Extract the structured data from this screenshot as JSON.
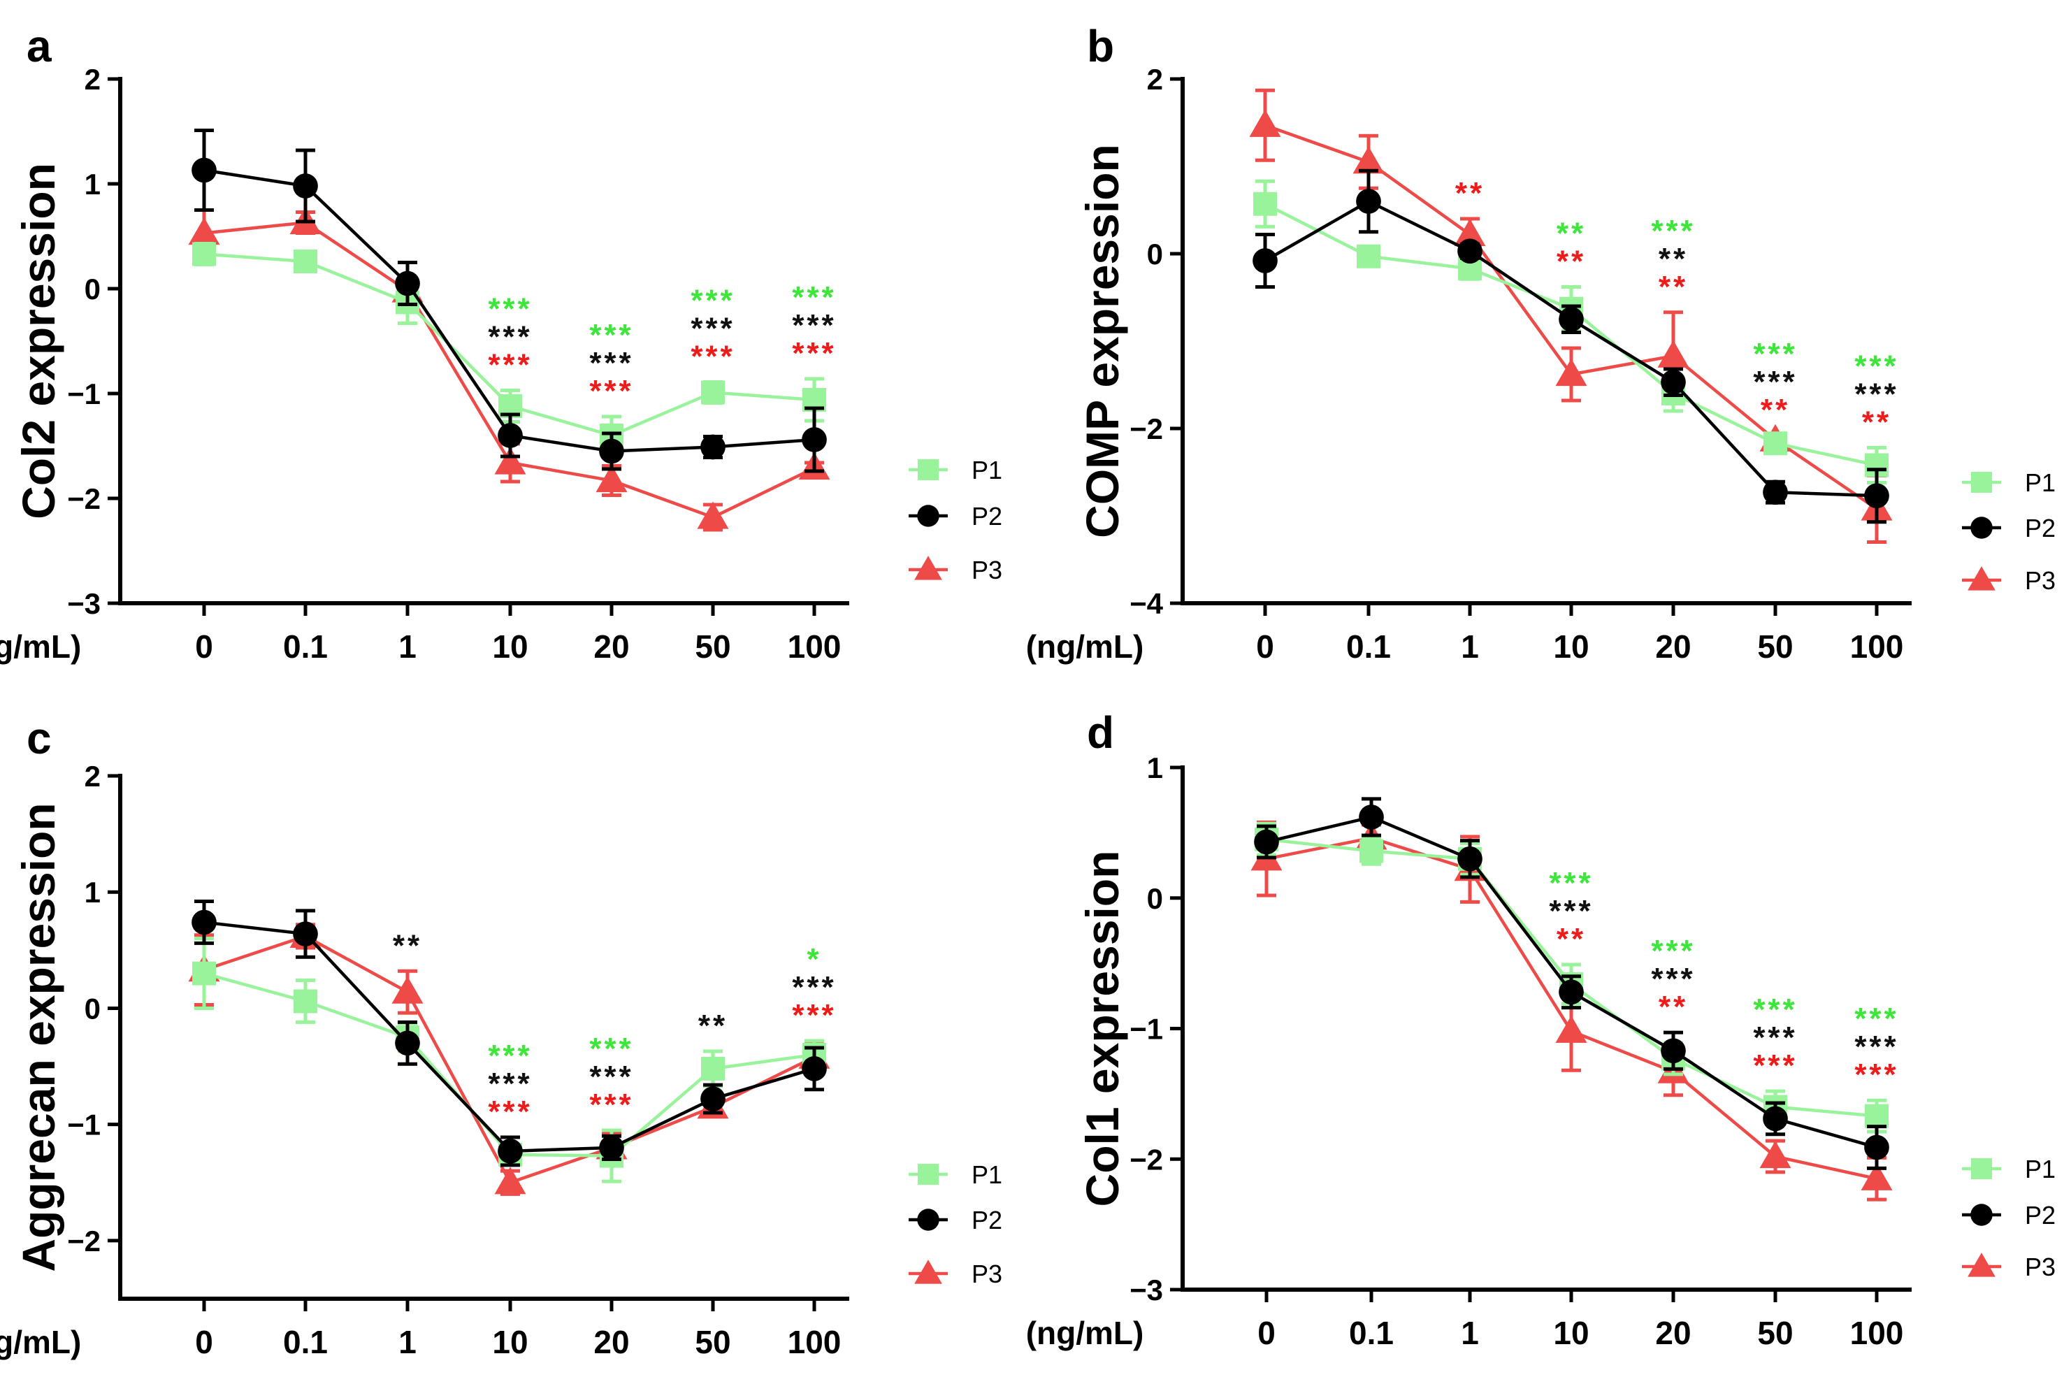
{
  "colors": {
    "P1": "#98f39a",
    "P2": "#000000",
    "P3": "#ee4a48",
    "sig_P1": "#3ee53a",
    "sig_P2": "#111111",
    "sig_P3": "#ee1b1b"
  },
  "chart_data": [
    {
      "panel": "a",
      "type": "line",
      "ylabel": "Col2 expression",
      "xunit": "(ng/mL)",
      "categories": [
        "0",
        "0.1",
        "1",
        "10",
        "20",
        "50",
        "100"
      ],
      "ylim": [
        -3,
        2
      ],
      "yticks": [
        -3,
        -2,
        -1,
        0,
        1,
        2
      ],
      "ytick_labels": [
        "−3",
        "−2",
        "−1",
        "0",
        "1",
        "2"
      ],
      "legend": [
        "P1",
        "P2",
        "P3"
      ],
      "series": [
        {
          "name": "P1",
          "values": [
            0.33,
            0.26,
            -0.13,
            -1.12,
            -1.4,
            -0.99,
            -1.06
          ],
          "errors": [
            0.1,
            0.04,
            0.2,
            0.15,
            0.18,
            0.1,
            0.2
          ]
        },
        {
          "name": "P2",
          "values": [
            1.13,
            0.98,
            0.05,
            -1.4,
            -1.55,
            -1.51,
            -1.44
          ],
          "errors": [
            0.38,
            0.34,
            0.2,
            0.2,
            0.17,
            0.1,
            0.3
          ]
        },
        {
          "name": "P3",
          "values": [
            0.53,
            0.63,
            -0.02,
            -1.66,
            -1.83,
            -2.18,
            -1.71
          ],
          "errors": [
            0.22,
            0.1,
            0.1,
            0.18,
            0.14,
            0.12,
            0.05
          ]
        }
      ],
      "significance": [
        {
          "category": "10",
          "labels": [
            [
              "P1",
              "***"
            ],
            [
              "P2",
              "***"
            ],
            [
              "P3",
              "***"
            ]
          ]
        },
        {
          "category": "20",
          "labels": [
            [
              "P1",
              "***"
            ],
            [
              "P2",
              "***"
            ],
            [
              "P3",
              "***"
            ]
          ]
        },
        {
          "category": "50",
          "labels": [
            [
              "P1",
              "***"
            ],
            [
              "P2",
              "***"
            ],
            [
              "P3",
              "***"
            ]
          ]
        },
        {
          "category": "100",
          "labels": [
            [
              "P1",
              "***"
            ],
            [
              "P2",
              "***"
            ],
            [
              "P3",
              "***"
            ]
          ]
        }
      ]
    },
    {
      "panel": "b",
      "type": "line",
      "ylabel": "COMP expression",
      "xunit": "(ng/mL)",
      "categories": [
        "0",
        "0.1",
        "1",
        "10",
        "20",
        "50",
        "100"
      ],
      "ylim": [
        -4,
        2
      ],
      "yticks": [
        -4,
        -2,
        0,
        2
      ],
      "ytick_labels": [
        "−4",
        "−2",
        "0",
        "2"
      ],
      "legend": [
        "P1",
        "P2",
        "P3"
      ],
      "series": [
        {
          "name": "P1",
          "values": [
            0.57,
            -0.03,
            -0.17,
            -0.63,
            -1.6,
            -2.17,
            -2.42
          ],
          "errors": [
            0.26,
            0.06,
            0.12,
            0.25,
            0.2,
            0.08,
            0.2
          ]
        },
        {
          "name": "P2",
          "values": [
            -0.08,
            0.6,
            0.03,
            -0.75,
            -1.47,
            -2.73,
            -2.77
          ],
          "errors": [
            0.3,
            0.35,
            0.08,
            0.15,
            0.15,
            0.12,
            0.3
          ]
        },
        {
          "name": "P3",
          "values": [
            1.47,
            1.05,
            0.22,
            -1.38,
            -1.17,
            -2.13,
            -2.92
          ],
          "errors": [
            0.4,
            0.3,
            0.18,
            0.3,
            0.5,
            0.05,
            0.38
          ]
        }
      ],
      "significance": [
        {
          "category": "1",
          "labels": [
            [
              "P3",
              "**"
            ]
          ]
        },
        {
          "category": "10",
          "labels": [
            [
              "P1",
              "**"
            ],
            [
              "P3",
              "**"
            ]
          ]
        },
        {
          "category": "20",
          "labels": [
            [
              "P1",
              "***"
            ],
            [
              "P2",
              "**"
            ],
            [
              "P3",
              "**"
            ]
          ]
        },
        {
          "category": "50",
          "labels": [
            [
              "P1",
              "***"
            ],
            [
              "P2",
              "***"
            ],
            [
              "P3",
              "**"
            ]
          ]
        },
        {
          "category": "100",
          "labels": [
            [
              "P1",
              "***"
            ],
            [
              "P2",
              "***"
            ],
            [
              "P3",
              "**"
            ]
          ]
        }
      ]
    },
    {
      "panel": "c",
      "type": "line",
      "ylabel": "Aggrecan expression",
      "xunit": "(ng/mL)",
      "categories": [
        "0",
        "0.1",
        "1",
        "10",
        "20",
        "50",
        "100"
      ],
      "ylim": [
        -2.5,
        2
      ],
      "yticks": [
        -2,
        -1,
        0,
        1,
        2
      ],
      "ytick_labels": [
        "−2",
        "−1",
        "0",
        "1",
        "2"
      ],
      "legend": [
        "P1",
        "P2",
        "P3"
      ],
      "series": [
        {
          "name": "P1",
          "values": [
            0.3,
            0.06,
            -0.25,
            -1.26,
            -1.27,
            -0.52,
            -0.4
          ],
          "errors": [
            0.3,
            0.18,
            0.12,
            0.08,
            0.22,
            0.15,
            0.12
          ]
        },
        {
          "name": "P2",
          "values": [
            0.74,
            0.64,
            -0.3,
            -1.23,
            -1.2,
            -0.78,
            -0.52
          ],
          "errors": [
            0.18,
            0.2,
            0.18,
            0.12,
            0.1,
            0.12,
            0.18
          ]
        },
        {
          "name": "P3",
          "values": [
            0.33,
            0.62,
            0.14,
            -1.5,
            -1.2,
            -0.85,
            -0.42
          ],
          "errors": [
            0.3,
            0.1,
            0.18,
            0.1,
            0.12,
            0.08,
            0.12
          ]
        }
      ],
      "significance": [
        {
          "category": "1",
          "labels": [
            [
              "P2",
              "**"
            ]
          ]
        },
        {
          "category": "10",
          "labels": [
            [
              "P1",
              "***"
            ],
            [
              "P2",
              "***"
            ],
            [
              "P3",
              "***"
            ]
          ]
        },
        {
          "category": "20",
          "labels": [
            [
              "P1",
              "***"
            ],
            [
              "P2",
              "***"
            ],
            [
              "P3",
              "***"
            ]
          ]
        },
        {
          "category": "50",
          "labels": [
            [
              "P2",
              "**"
            ]
          ]
        },
        {
          "category": "100",
          "labels": [
            [
              "P1",
              "*"
            ],
            [
              "P2",
              "***"
            ],
            [
              "P3",
              "***"
            ]
          ]
        }
      ]
    },
    {
      "panel": "d",
      "type": "line",
      "ylabel": "Col1 expression",
      "xunit": "(ng/mL)",
      "categories": [
        "0",
        "0.1",
        "1",
        "10",
        "20",
        "50",
        "100"
      ],
      "ylim": [
        -3,
        1
      ],
      "yticks": [
        -3,
        -2,
        -1,
        0,
        1
      ],
      "ytick_labels": [
        "−3",
        "−2",
        "−1",
        "0",
        "1"
      ],
      "legend": [
        "P1",
        "P2",
        "P3"
      ],
      "series": [
        {
          "name": "P1",
          "values": [
            0.45,
            0.36,
            0.3,
            -0.66,
            -1.23,
            -1.6,
            -1.67
          ],
          "errors": [
            0.12,
            0.1,
            0.12,
            0.15,
            0.12,
            0.12,
            0.12
          ]
        },
        {
          "name": "P2",
          "values": [
            0.43,
            0.62,
            0.3,
            -0.72,
            -1.17,
            -1.69,
            -1.91
          ],
          "errors": [
            0.12,
            0.14,
            0.14,
            0.12,
            0.14,
            0.12,
            0.16
          ]
        },
        {
          "name": "P3",
          "values": [
            0.3,
            0.46,
            0.22,
            -1.02,
            -1.33,
            -1.98,
            -2.15
          ],
          "errors": [
            0.28,
            0.1,
            0.25,
            0.3,
            0.18,
            0.12,
            0.16
          ]
        }
      ],
      "significance": [
        {
          "category": "10",
          "labels": [
            [
              "P1",
              "***"
            ],
            [
              "P2",
              "***"
            ],
            [
              "P3",
              "**"
            ]
          ]
        },
        {
          "category": "20",
          "labels": [
            [
              "P1",
              "***"
            ],
            [
              "P2",
              "***"
            ],
            [
              "P3",
              "**"
            ]
          ]
        },
        {
          "category": "50",
          "labels": [
            [
              "P1",
              "***"
            ],
            [
              "P2",
              "***"
            ],
            [
              "P3",
              "***"
            ]
          ]
        },
        {
          "category": "100",
          "labels": [
            [
              "P1",
              "***"
            ],
            [
              "P2",
              "***"
            ],
            [
              "P3",
              "***"
            ]
          ]
        }
      ]
    }
  ]
}
